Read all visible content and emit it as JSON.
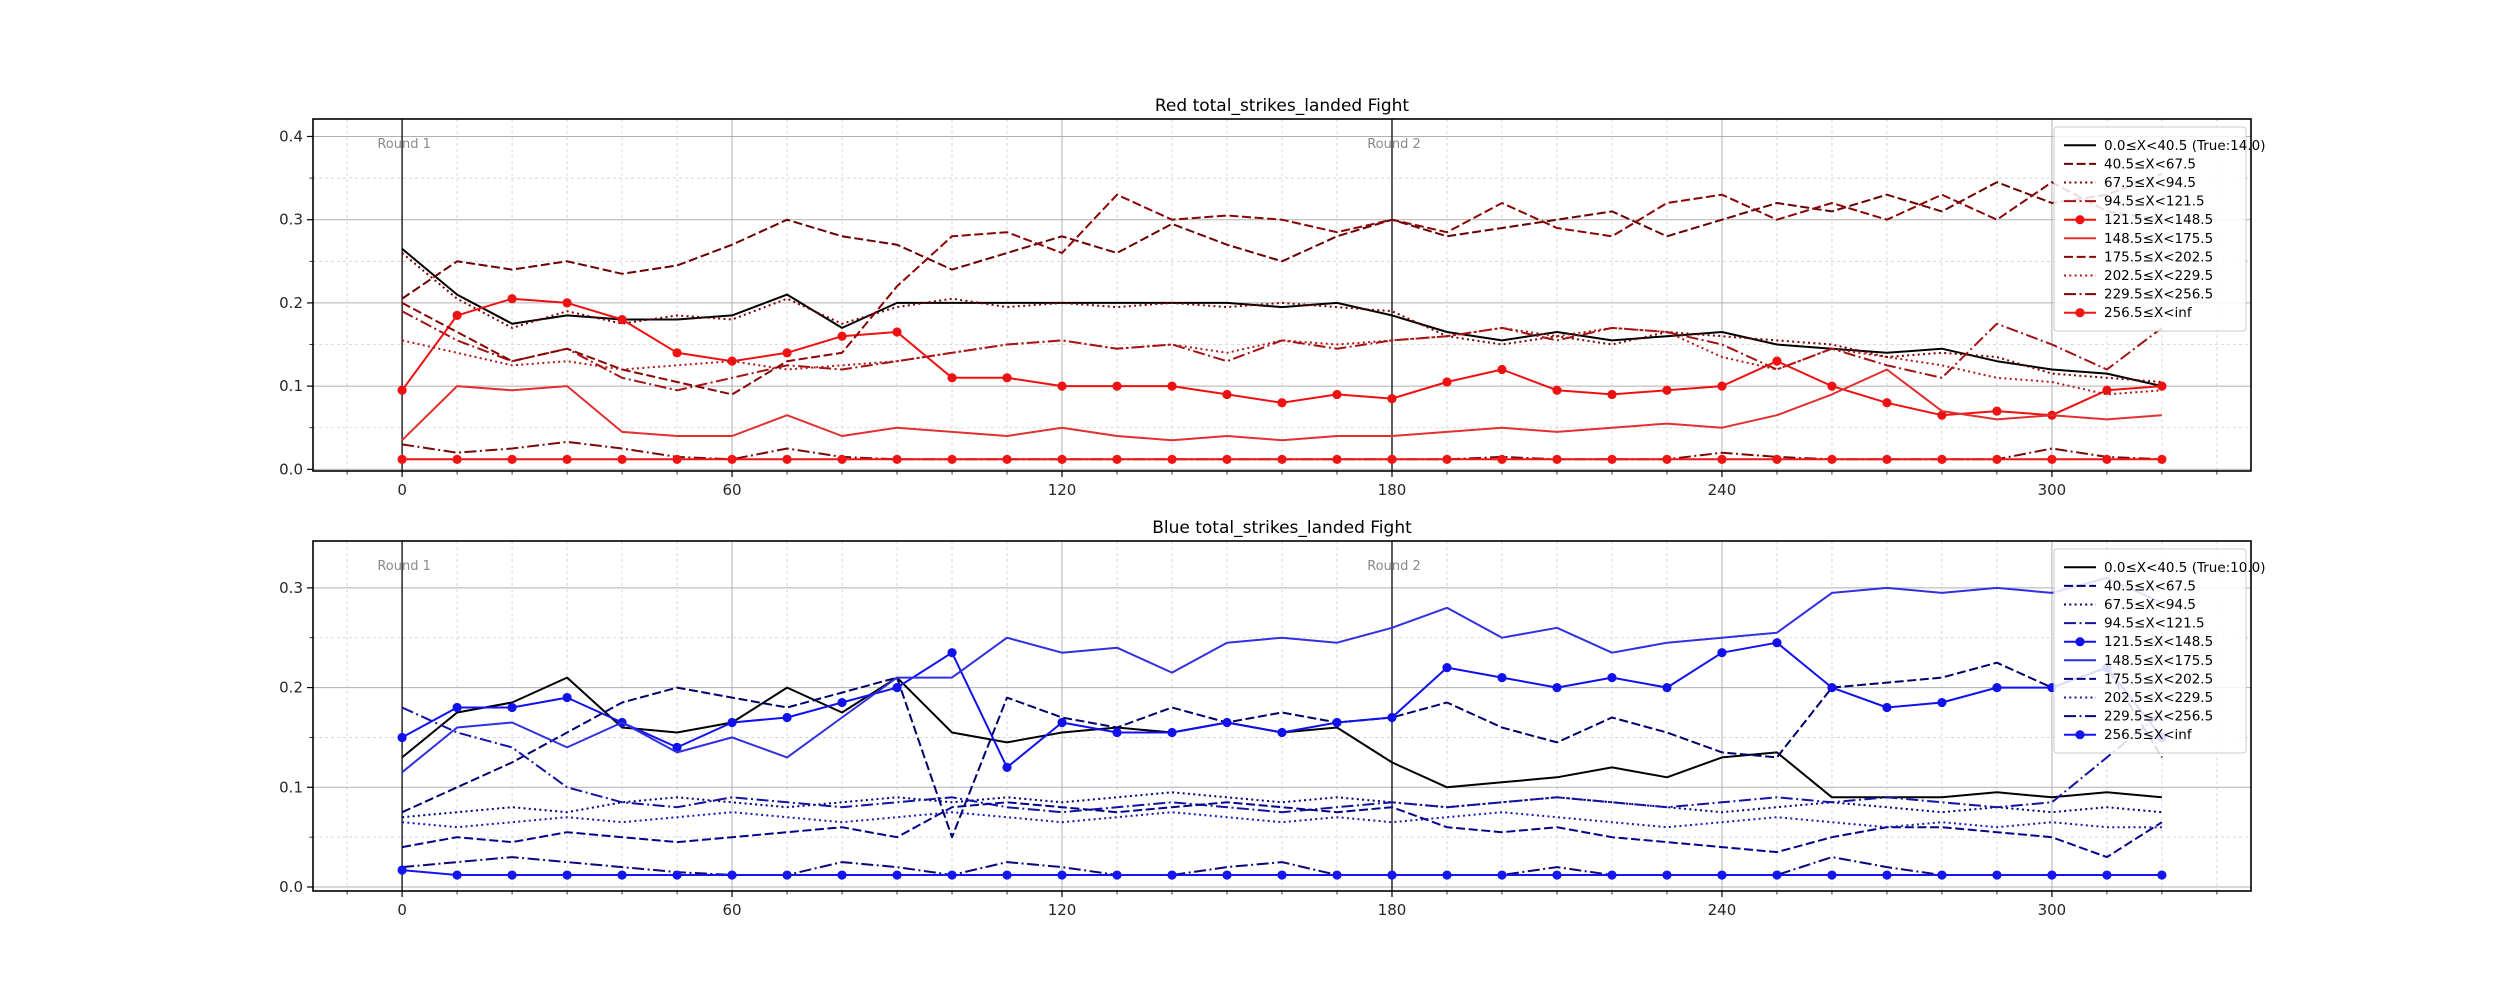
{
  "figure": {
    "background": "#ffffff",
    "grid_major_color": "#b0b0b0",
    "grid_minor_color": "#cfcfcf",
    "round_line_color": "#1a1a1a",
    "round_label_color": "#8a8a8a",
    "tick_label_color": "#262626",
    "legend_border_color": "#cccccc"
  },
  "chart_data": [
    {
      "type": "line",
      "title": "Red total_strikes_landed Fight",
      "xlabel": "",
      "ylabel": "",
      "xlim": [
        -16.2,
        336.2
      ],
      "ylim": [
        -0.002,
        0.421
      ],
      "x_major_ticks": [
        0,
        60,
        120,
        180,
        240,
        300
      ],
      "x_minor_step": 10,
      "y_major_ticks": [
        "0.0",
        "0.1",
        "0.2",
        "0.3",
        "0.4"
      ],
      "y_minor_step": 0.05,
      "grid": true,
      "legend_position": "upper right",
      "round_markers": [
        {
          "label": "Round 1",
          "x": 0
        },
        {
          "label": "Round 2",
          "x": 180
        }
      ],
      "x": [
        0,
        10,
        20,
        30,
        40,
        50,
        60,
        70,
        80,
        90,
        100,
        110,
        120,
        130,
        140,
        150,
        160,
        170,
        180,
        190,
        200,
        210,
        220,
        230,
        240,
        250,
        260,
        270,
        280,
        290,
        300,
        310,
        320
      ],
      "series": [
        {
          "label": "0.0≤X<40.5 (True:14.0)",
          "color": "#000000",
          "style": "solid",
          "marker": false,
          "values": [
            0.265,
            0.21,
            0.175,
            0.185,
            0.18,
            0.18,
            0.185,
            0.21,
            0.17,
            0.2,
            0.2,
            0.2,
            0.2,
            0.2,
            0.2,
            0.2,
            0.195,
            0.2,
            0.185,
            0.165,
            0.155,
            0.165,
            0.155,
            0.16,
            0.165,
            0.15,
            0.145,
            0.14,
            0.145,
            0.13,
            0.12,
            0.115,
            0.1
          ]
        },
        {
          "label": "40.5≤X<67.5",
          "color": "#6b0000",
          "style": "dashed",
          "marker": false,
          "values": [
            0.205,
            0.25,
            0.24,
            0.25,
            0.235,
            0.245,
            0.27,
            0.3,
            0.28,
            0.27,
            0.24,
            0.26,
            0.28,
            0.26,
            0.295,
            0.27,
            0.25,
            0.28,
            0.3,
            0.28,
            0.29,
            0.3,
            0.31,
            0.28,
            0.3,
            0.32,
            0.31,
            0.33,
            0.31,
            0.345,
            0.32,
            0.33,
            0.355
          ]
        },
        {
          "label": "67.5≤X<94.5",
          "color": "#7d0000",
          "style": "dotted",
          "marker": false,
          "values": [
            0.26,
            0.205,
            0.17,
            0.19,
            0.175,
            0.185,
            0.18,
            0.205,
            0.175,
            0.195,
            0.205,
            0.195,
            0.2,
            0.195,
            0.2,
            0.195,
            0.2,
            0.195,
            0.19,
            0.16,
            0.15,
            0.16,
            0.15,
            0.165,
            0.16,
            0.155,
            0.15,
            0.135,
            0.14,
            0.135,
            0.115,
            0.11,
            0.105
          ]
        },
        {
          "label": "94.5≤X<121.5",
          "color": "#a31212",
          "style": "dashdot",
          "marker": false,
          "values": [
            0.19,
            0.155,
            0.13,
            0.145,
            0.11,
            0.095,
            0.11,
            0.125,
            0.12,
            0.13,
            0.14,
            0.15,
            0.155,
            0.145,
            0.15,
            0.13,
            0.155,
            0.145,
            0.155,
            0.16,
            0.17,
            0.155,
            0.17,
            0.165,
            0.15,
            0.12,
            0.145,
            0.125,
            0.11,
            0.175,
            0.15,
            0.12,
            0.17
          ]
        },
        {
          "label": "121.5≤X<148.5",
          "color": "#ee1111",
          "style": "solid",
          "marker": true,
          "values": [
            0.095,
            0.185,
            0.205,
            0.2,
            0.18,
            0.14,
            0.13,
            0.14,
            0.16,
            0.165,
            0.11,
            0.11,
            0.1,
            0.1,
            0.1,
            0.09,
            0.08,
            0.09,
            0.085,
            0.105,
            0.12,
            0.095,
            0.09,
            0.095,
            0.1,
            0.13,
            0.1,
            0.08,
            0.065,
            0.07,
            0.065,
            0.095,
            0.1
          ]
        },
        {
          "label": "148.5≤X<175.5",
          "color": "#e03030",
          "style": "solid",
          "marker": false,
          "values": [
            0.035,
            0.1,
            0.095,
            0.1,
            0.045,
            0.04,
            0.04,
            0.065,
            0.04,
            0.05,
            0.045,
            0.04,
            0.05,
            0.04,
            0.035,
            0.04,
            0.035,
            0.04,
            0.04,
            0.045,
            0.05,
            0.045,
            0.05,
            0.055,
            0.05,
            0.065,
            0.09,
            0.12,
            0.07,
            0.06,
            0.065,
            0.06,
            0.065
          ]
        },
        {
          "label": "175.5≤X<202.5",
          "color": "#8b0404",
          "style": "dashed",
          "marker": false,
          "values": [
            0.2,
            0.165,
            0.13,
            0.145,
            0.12,
            0.105,
            0.09,
            0.13,
            0.14,
            0.22,
            0.28,
            0.285,
            0.26,
            0.33,
            0.3,
            0.305,
            0.3,
            0.285,
            0.3,
            0.285,
            0.32,
            0.29,
            0.28,
            0.32,
            0.33,
            0.3,
            0.32,
            0.3,
            0.33,
            0.3,
            0.345,
            0.31,
            0.3
          ]
        },
        {
          "label": "202.5≤X<229.5",
          "color": "#b01818",
          "style": "dotted",
          "marker": false,
          "values": [
            0.155,
            0.14,
            0.125,
            0.13,
            0.12,
            0.125,
            0.13,
            0.12,
            0.125,
            0.13,
            0.14,
            0.15,
            0.155,
            0.145,
            0.15,
            0.14,
            0.155,
            0.15,
            0.155,
            0.16,
            0.17,
            0.16,
            0.17,
            0.165,
            0.135,
            0.12,
            0.145,
            0.135,
            0.125,
            0.11,
            0.105,
            0.09,
            0.095
          ]
        },
        {
          "label": "229.5≤X<256.5",
          "color": "#7a0808",
          "style": "dashdot",
          "marker": false,
          "values": [
            0.03,
            0.02,
            0.025,
            0.033,
            0.025,
            0.015,
            0.012,
            0.025,
            0.015,
            0.012,
            0.012,
            0.012,
            0.012,
            0.012,
            0.012,
            0.012,
            0.012,
            0.012,
            0.012,
            0.012,
            0.015,
            0.012,
            0.012,
            0.012,
            0.02,
            0.015,
            0.012,
            0.012,
            0.012,
            0.012,
            0.025,
            0.015,
            0.012
          ]
        },
        {
          "label": "256.5≤X<inf",
          "color": "#f01515",
          "style": "solid",
          "marker": true,
          "values": [
            0.012,
            0.012,
            0.012,
            0.012,
            0.012,
            0.012,
            0.012,
            0.012,
            0.012,
            0.012,
            0.012,
            0.012,
            0.012,
            0.012,
            0.012,
            0.012,
            0.012,
            0.012,
            0.012,
            0.012,
            0.012,
            0.012,
            0.012,
            0.012,
            0.012,
            0.012,
            0.012,
            0.012,
            0.012,
            0.012,
            0.012,
            0.012,
            0.012
          ]
        }
      ]
    },
    {
      "type": "line",
      "title": "Blue total_strikes_landed Fight",
      "xlabel": "",
      "ylabel": "",
      "xlim": [
        -16.2,
        336.2
      ],
      "ylim": [
        -0.004,
        0.347
      ],
      "x_major_ticks": [
        0,
        60,
        120,
        180,
        240,
        300
      ],
      "x_minor_step": 10,
      "y_major_ticks": [
        "0.0",
        "0.1",
        "0.2",
        "0.3"
      ],
      "y_minor_step": 0.05,
      "grid": true,
      "legend_position": "upper right",
      "round_markers": [
        {
          "label": "Round 1",
          "x": 0
        },
        {
          "label": "Round 2",
          "x": 180
        }
      ],
      "x": [
        0,
        10,
        20,
        30,
        40,
        50,
        60,
        70,
        80,
        90,
        100,
        110,
        120,
        130,
        140,
        150,
        160,
        170,
        180,
        190,
        200,
        210,
        220,
        230,
        240,
        250,
        260,
        270,
        280,
        290,
        300,
        310,
        320
      ],
      "series": [
        {
          "label": "0.0≤X<40.5 (True:10.0)",
          "color": "#000000",
          "style": "solid",
          "marker": false,
          "values": [
            0.13,
            0.175,
            0.185,
            0.21,
            0.16,
            0.155,
            0.165,
            0.2,
            0.175,
            0.21,
            0.155,
            0.145,
            0.155,
            0.16,
            0.155,
            0.165,
            0.155,
            0.16,
            0.125,
            0.1,
            0.105,
            0.11,
            0.12,
            0.11,
            0.13,
            0.135,
            0.09,
            0.09,
            0.09,
            0.095,
            0.09,
            0.095,
            0.09
          ]
        },
        {
          "label": "40.5≤X<67.5",
          "color": "#00006b",
          "style": "dashed",
          "marker": false,
          "values": [
            0.075,
            0.1,
            0.125,
            0.155,
            0.185,
            0.2,
            0.19,
            0.18,
            0.195,
            0.21,
            0.05,
            0.19,
            0.17,
            0.16,
            0.18,
            0.165,
            0.175,
            0.165,
            0.17,
            0.185,
            0.16,
            0.145,
            0.17,
            0.155,
            0.135,
            0.13,
            0.2,
            0.205,
            0.21,
            0.225,
            0.2,
            0.22,
            0.13
          ]
        },
        {
          "label": "67.5≤X<94.5",
          "color": "#00007d",
          "style": "dotted",
          "marker": false,
          "values": [
            0.07,
            0.075,
            0.08,
            0.075,
            0.085,
            0.09,
            0.085,
            0.08,
            0.085,
            0.09,
            0.085,
            0.09,
            0.085,
            0.09,
            0.095,
            0.09,
            0.085,
            0.09,
            0.085,
            0.08,
            0.085,
            0.09,
            0.085,
            0.08,
            0.075,
            0.08,
            0.085,
            0.08,
            0.075,
            0.08,
            0.075,
            0.08,
            0.075
          ]
        },
        {
          "label": "94.5≤X<121.5",
          "color": "#1212a3",
          "style": "dashdot",
          "marker": false,
          "values": [
            0.18,
            0.155,
            0.14,
            0.1,
            0.085,
            0.08,
            0.09,
            0.085,
            0.08,
            0.085,
            0.09,
            0.08,
            0.075,
            0.08,
            0.085,
            0.08,
            0.075,
            0.08,
            0.085,
            0.08,
            0.085,
            0.09,
            0.085,
            0.08,
            0.085,
            0.09,
            0.085,
            0.09,
            0.085,
            0.08,
            0.085,
            0.13,
            0.175
          ]
        },
        {
          "label": "121.5≤X<148.5",
          "color": "#1111ee",
          "style": "solid",
          "marker": true,
          "values": [
            0.15,
            0.18,
            0.18,
            0.19,
            0.165,
            0.14,
            0.165,
            0.17,
            0.185,
            0.2,
            0.235,
            0.12,
            0.165,
            0.155,
            0.155,
            0.165,
            0.155,
            0.165,
            0.17,
            0.22,
            0.21,
            0.2,
            0.21,
            0.2,
            0.235,
            0.245,
            0.2,
            0.18,
            0.185,
            0.2,
            0.2,
            0.22,
            0.15
          ]
        },
        {
          "label": "148.5≤X<175.5",
          "color": "#3030e0",
          "style": "solid",
          "marker": false,
          "values": [
            0.115,
            0.16,
            0.165,
            0.14,
            0.165,
            0.135,
            0.15,
            0.13,
            0.17,
            0.21,
            0.21,
            0.25,
            0.235,
            0.24,
            0.215,
            0.245,
            0.25,
            0.245,
            0.26,
            0.28,
            0.25,
            0.26,
            0.235,
            0.245,
            0.25,
            0.255,
            0.295,
            0.3,
            0.295,
            0.3,
            0.295,
            0.31,
            0.285
          ]
        },
        {
          "label": "175.5≤X<202.5",
          "color": "#04048b",
          "style": "dashed",
          "marker": false,
          "values": [
            0.04,
            0.05,
            0.045,
            0.055,
            0.05,
            0.045,
            0.05,
            0.055,
            0.06,
            0.05,
            0.08,
            0.085,
            0.08,
            0.075,
            0.08,
            0.085,
            0.08,
            0.075,
            0.08,
            0.06,
            0.055,
            0.06,
            0.05,
            0.045,
            0.04,
            0.035,
            0.05,
            0.06,
            0.06,
            0.055,
            0.05,
            0.03,
            0.065
          ]
        },
        {
          "label": "202.5≤X<229.5",
          "color": "#1818b0",
          "style": "dotted",
          "marker": false,
          "values": [
            0.065,
            0.06,
            0.065,
            0.07,
            0.065,
            0.07,
            0.075,
            0.07,
            0.065,
            0.07,
            0.075,
            0.07,
            0.065,
            0.07,
            0.075,
            0.07,
            0.065,
            0.07,
            0.065,
            0.07,
            0.075,
            0.07,
            0.065,
            0.06,
            0.065,
            0.07,
            0.065,
            0.06,
            0.065,
            0.06,
            0.065,
            0.06,
            0.06
          ]
        },
        {
          "label": "229.5≤X<256.5",
          "color": "#08087a",
          "style": "dashdot",
          "marker": false,
          "values": [
            0.02,
            0.025,
            0.03,
            0.025,
            0.02,
            0.015,
            0.012,
            0.012,
            0.025,
            0.02,
            0.012,
            0.025,
            0.02,
            0.012,
            0.012,
            0.02,
            0.025,
            0.012,
            0.012,
            0.012,
            0.012,
            0.02,
            0.012,
            0.012,
            0.012,
            0.012,
            0.03,
            0.02,
            0.012,
            0.012,
            0.012,
            0.012,
            0.012
          ]
        },
        {
          "label": "256.5≤X<inf",
          "color": "#1515f0",
          "style": "solid",
          "marker": true,
          "values": [
            0.017,
            0.012,
            0.012,
            0.012,
            0.012,
            0.012,
            0.012,
            0.012,
            0.012,
            0.012,
            0.012,
            0.012,
            0.012,
            0.012,
            0.012,
            0.012,
            0.012,
            0.012,
            0.012,
            0.012,
            0.012,
            0.012,
            0.012,
            0.012,
            0.012,
            0.012,
            0.012,
            0.012,
            0.012,
            0.012,
            0.012,
            0.012,
            0.012
          ]
        }
      ]
    }
  ]
}
